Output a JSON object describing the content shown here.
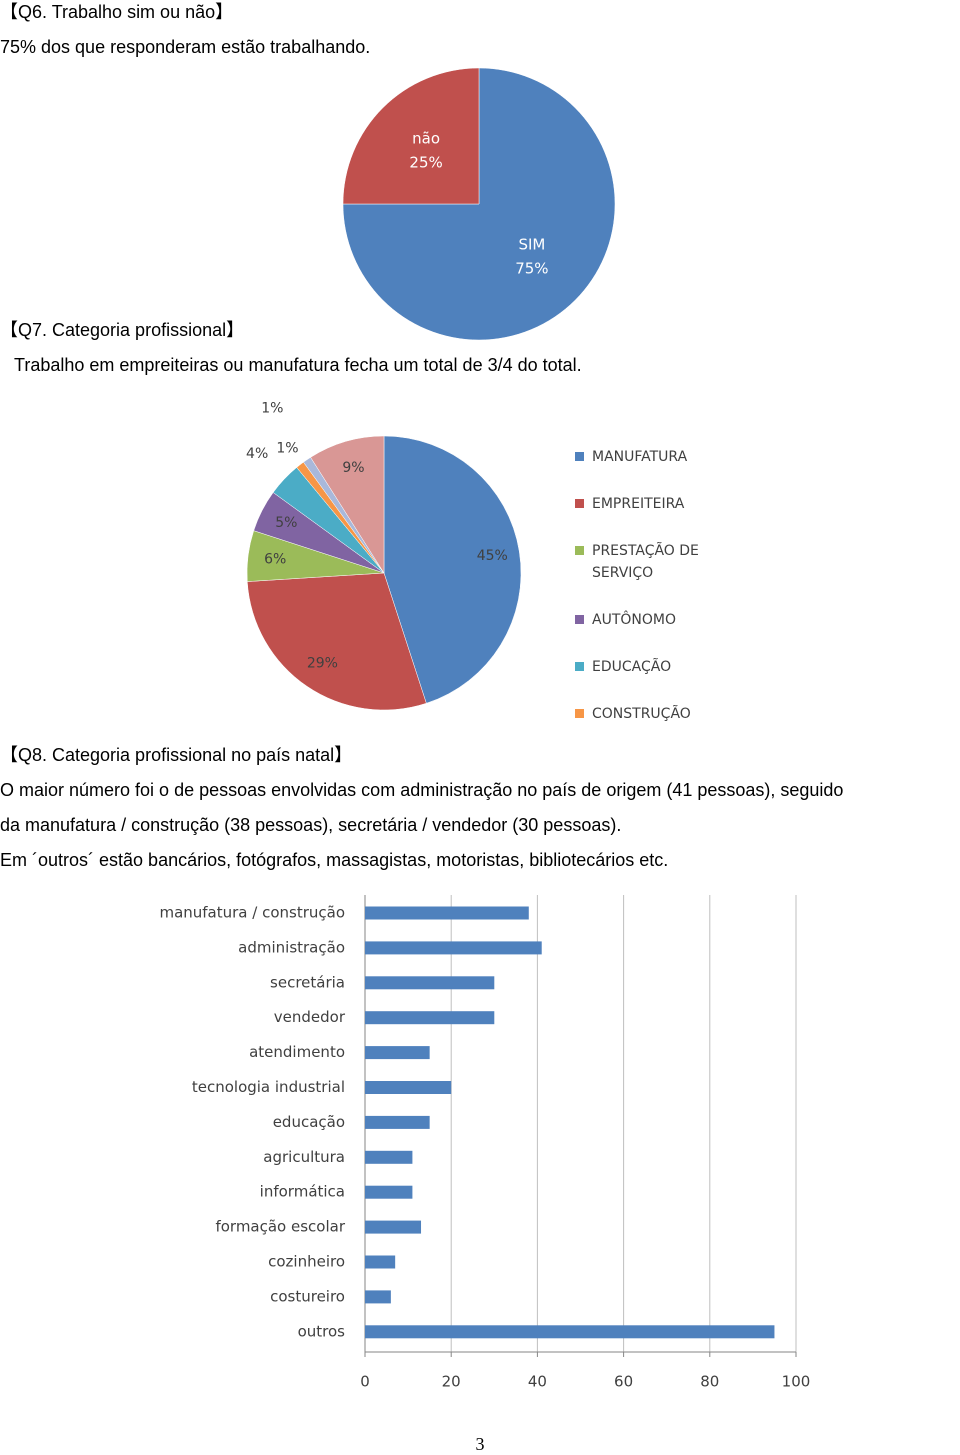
{
  "sections": [
    {
      "heading": "【Q6. Trabalho sim ou não】",
      "lines": [
        "75% dos que responderam estão trabalhando."
      ]
    },
    {
      "heading": "【Q7. Categoria profissional】",
      "lines": [
        "Trabalho em empreiteiras ou manufatura fecha um total de 3/4 do total."
      ]
    },
    {
      "heading": "【Q8. Categoria profissional no país natal】",
      "lines": [
        "O maior número foi o de pessoas envolvidas com administração no país de origem (41 pessoas), seguido",
        "da manufatura / construção (38 pessoas), secretária / vendedor (30 pessoas).",
        "Em ´outros´ estão bancários, fotógrafos, massagistas, motoristas, bibliotecários etc."
      ]
    }
  ],
  "chart_data": [
    {
      "type": "pie",
      "categories": [
        "SIM",
        "não"
      ],
      "values": [
        75,
        25
      ],
      "value_labels": [
        "75%",
        "25%"
      ],
      "colors": [
        "#4f81bd",
        "#c0504d"
      ],
      "category_labels_on_slices": true
    },
    {
      "type": "pie",
      "categories": [
        "MANUFATURA",
        "EMPREITEIRA",
        "PRESTAÇÃO DE SERVIÇO",
        "AUTÔNOMO",
        "EDUCAÇÃO",
        "CONSTRUÇÃO",
        null,
        null
      ],
      "values": [
        45,
        29,
        6,
        5,
        4,
        1,
        1,
        9
      ],
      "value_labels": [
        "45%",
        "29%",
        "6%",
        "5%",
        "4%",
        "1%",
        "1%",
        "9%"
      ],
      "colors": [
        "#4f81bd",
        "#c0504d",
        "#9bbb59",
        "#8064a2",
        "#4bacc6",
        "#f79646",
        "#a9b8da",
        "#d99795"
      ],
      "legend": "right"
    },
    {
      "type": "bar",
      "horizontal": true,
      "categories": [
        "manufatura / construção",
        "administração",
        "secretária",
        "vendedor",
        "atendimento",
        "tecnologia industrial",
        "educação",
        "agricultura",
        "informática",
        "formação escolar",
        "cozinheiro",
        "costureiro",
        "outros"
      ],
      "values": [
        38,
        41,
        30,
        30,
        15,
        20,
        15,
        11,
        11,
        13,
        7,
        6,
        95
      ],
      "color": "#4f81bd",
      "xlim": [
        0,
        100
      ],
      "xticks": [
        0,
        20,
        40,
        60,
        80,
        100
      ],
      "grid": true
    }
  ],
  "page_number": "3"
}
